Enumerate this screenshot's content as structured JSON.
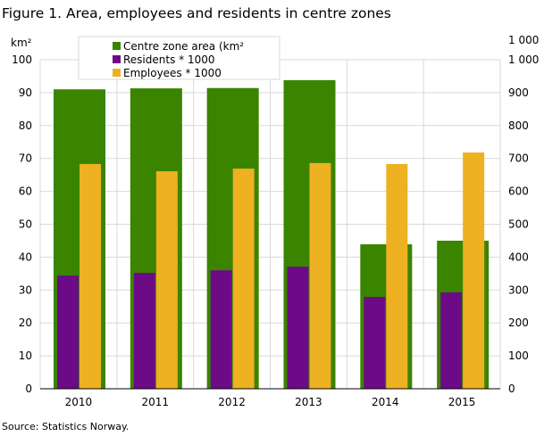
{
  "chart_data": {
    "type": "bar",
    "title": "Figure 1. Area, employees and residents in centre zones",
    "ylabel_left": "km²",
    "ylabel_right": "1 000",
    "ylim_left": [
      0,
      100
    ],
    "ylim_right": [
      0,
      1000
    ],
    "yticks_left": [
      "0",
      "10",
      "20",
      "30",
      "40",
      "50",
      "60",
      "70",
      "80",
      "90",
      "100"
    ],
    "yticks_right": [
      "0",
      "100",
      "200",
      "300",
      "400",
      "500",
      "600",
      "700",
      "800",
      "900",
      "1 000"
    ],
    "categories": [
      "2010",
      "2011",
      "2012",
      "2013",
      "2014",
      "2015"
    ],
    "grid": true,
    "legend_position": "top-left",
    "series": [
      {
        "name": "Centre zone area (km²",
        "axis": "left",
        "color": "#3a8400",
        "values": [
          91,
          91.3,
          91.4,
          93.8,
          43.9,
          45
        ]
      },
      {
        "name": "Residents * 1000",
        "axis": "right",
        "color": "#6d0a87",
        "values": [
          344,
          352,
          360,
          371,
          279,
          293
        ]
      },
      {
        "name": "Employees * 1000",
        "axis": "right",
        "color": "#edb121",
        "values": [
          683,
          661,
          669,
          686,
          683,
          718
        ]
      }
    ],
    "source": "Source: Statistics Norway."
  }
}
